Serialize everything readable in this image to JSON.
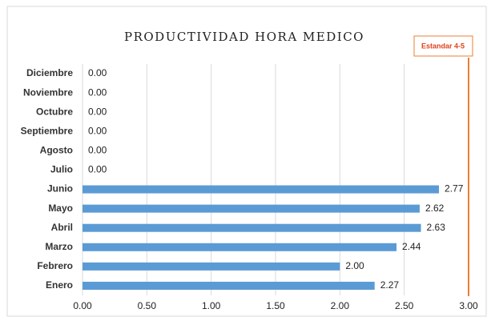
{
  "chart_data": {
    "type": "barh",
    "title": "PRODUCTIVIDAD HORA MEDICO",
    "annotation": "Estandar 4-5",
    "categories": [
      "Enero",
      "Febrero",
      "Marzo",
      "Abril",
      "Mayo",
      "Junio",
      "Julio",
      "Agosto",
      "Septiembre",
      "Octubre",
      "Noviembre",
      "Diciembre"
    ],
    "values": [
      2.27,
      2.0,
      2.44,
      2.63,
      2.62,
      2.77,
      0,
      0,
      0,
      0,
      0,
      0
    ],
    "value_labels": [
      "2.27",
      "2.00",
      "2.44",
      "2.63",
      "2.62",
      "2.77",
      "0.00",
      "0.00",
      "0.00",
      "0.00",
      "0.00",
      "0.00"
    ],
    "color": "#5b9bd5",
    "xlim": [
      0,
      3
    ],
    "xticks": [
      {
        "value": 0,
        "label": "0.00"
      },
      {
        "value": 0.5,
        "label": "0.50"
      },
      {
        "value": 1,
        "label": "1.00"
      },
      {
        "value": 1.5,
        "label": "1.50"
      },
      {
        "value": 2,
        "label": "2.00"
      },
      {
        "value": 2.5,
        "label": "2.50"
      },
      {
        "value": 3,
        "label": "3.00"
      }
    ],
    "grid": true
  }
}
